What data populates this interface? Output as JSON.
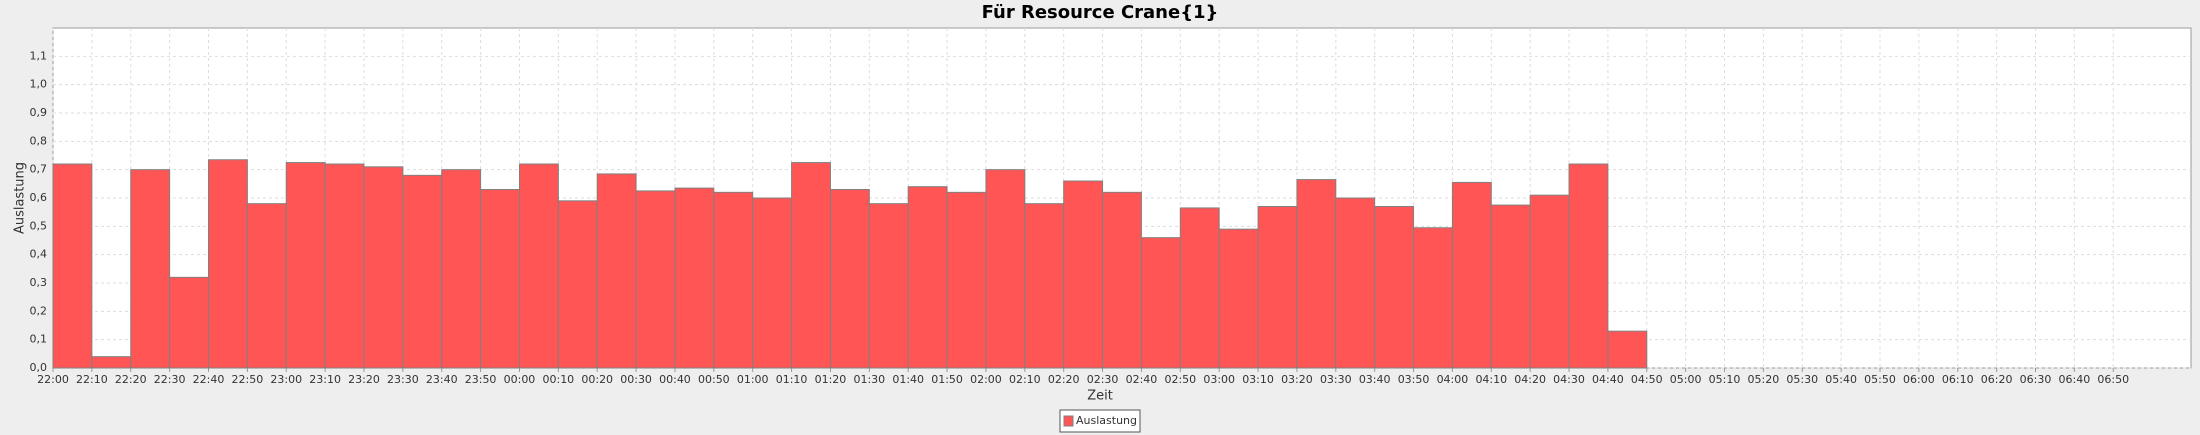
{
  "chart_data": {
    "type": "bar",
    "title": "Für Resource Crane{1}",
    "x_label": "Zeit",
    "y_label": "Auslastung",
    "categories": [
      "22:00",
      "22:10",
      "22:20",
      "22:30",
      "22:40",
      "22:50",
      "23:00",
      "23:10",
      "23:20",
      "23:30",
      "23:40",
      "23:50",
      "00:00",
      "00:10",
      "00:20",
      "00:30",
      "00:40",
      "00:50",
      "01:00",
      "01:10",
      "01:20",
      "01:30",
      "01:40",
      "01:50",
      "02:00",
      "02:10",
      "02:20",
      "02:30",
      "02:40",
      "02:50",
      "03:00",
      "03:10",
      "03:20",
      "03:30",
      "03:40",
      "03:50",
      "04:00",
      "04:10",
      "04:20",
      "04:30",
      "04:40",
      "04:50",
      "05:00",
      "05:10",
      "05:20",
      "05:30",
      "05:40",
      "05:50",
      "06:00",
      "06:10",
      "06:20",
      "06:30",
      "06:40",
      "06:50"
    ],
    "series": [
      {
        "name": "Auslastung",
        "color": "#ff5555",
        "values": [
          0.72,
          0.04,
          0.7,
          0.32,
          0.735,
          0.58,
          0.725,
          0.72,
          0.71,
          0.68,
          0.7,
          0.63,
          0.72,
          0.59,
          0.685,
          0.625,
          0.635,
          0.62,
          0.6,
          0.725,
          0.63,
          0.58,
          0.64,
          0.62,
          0.7,
          0.58,
          0.66,
          0.62,
          0.46,
          0.565,
          0.49,
          0.57,
          0.665,
          0.6,
          0.57,
          0.495,
          0.655,
          0.575,
          0.61,
          0.72,
          0.13,
          null,
          null,
          null,
          null,
          null,
          null,
          null,
          null,
          null,
          null,
          null,
          null,
          null
        ]
      }
    ],
    "ylim": [
      0,
      1.2
    ],
    "yticks": [
      {
        "value": 0,
        "label": "0,0"
      },
      {
        "value": 0.1,
        "label": "0,1"
      },
      {
        "value": 0.2,
        "label": "0,2"
      },
      {
        "value": 0.3,
        "label": "0,3"
      },
      {
        "value": 0.4,
        "label": "0,4"
      },
      {
        "value": 0.5,
        "label": "0,5"
      },
      {
        "value": 0.6,
        "label": "0,6"
      },
      {
        "value": 0.7,
        "label": "0,7"
      },
      {
        "value": 0.8,
        "label": "0,8"
      },
      {
        "value": 0.9,
        "label": "0,9"
      },
      {
        "value": 1.0,
        "label": "1,0"
      },
      {
        "value": 1.1,
        "label": "1,1"
      }
    ],
    "grid": true,
    "legend": "bottom"
  }
}
